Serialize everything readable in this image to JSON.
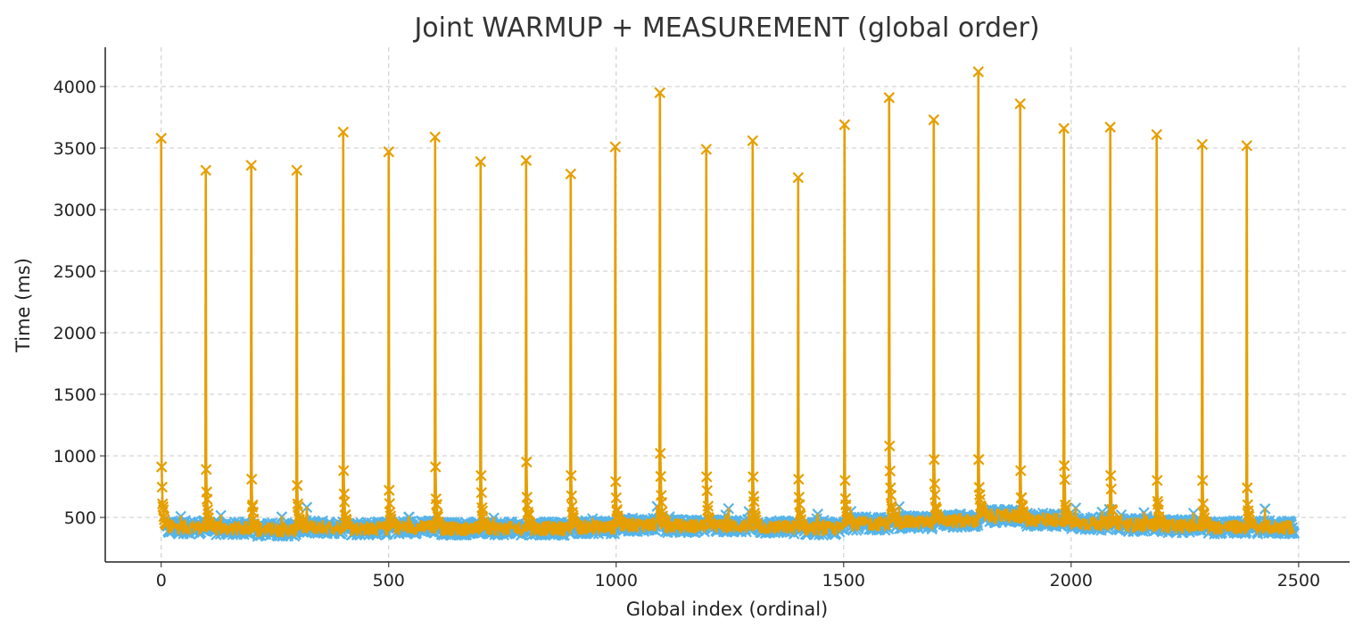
{
  "chart_data": {
    "type": "line",
    "title": "Joint WARMUP + MEASUREMENT (global order)",
    "xlabel": "Global index (ordinal)",
    "ylabel": "Time (ms)",
    "xlim": [
      -123,
      2612
    ],
    "ylim": [
      138,
      4319
    ],
    "xticks": [
      0,
      500,
      1000,
      1500,
      2000,
      2500
    ],
    "yticks": [
      500,
      1000,
      1500,
      2000,
      2500,
      3000,
      3500,
      4000
    ],
    "grid": true,
    "colors": {
      "warmup": "#E69F00",
      "measurement": "#56B4E9"
    },
    "marker": "x",
    "last_index": 2490,
    "warmup_spikes": {
      "x": [
        0,
        98,
        198,
        298,
        400,
        500,
        602,
        702,
        802,
        900,
        998,
        1096,
        1198,
        1300,
        1400,
        1502,
        1600,
        1698,
        1796,
        1888,
        1984,
        2086,
        2188,
        2288,
        2386
      ],
      "peak": [
        3580,
        3320,
        3360,
        3320,
        3630,
        3470,
        3590,
        3390,
        3400,
        3290,
        3510,
        3950,
        3490,
        3560,
        3260,
        3690,
        3910,
        3730,
        4120,
        3860,
        3660,
        3670,
        3610,
        3530,
        3520
      ],
      "second": [
        910,
        890,
        810,
        760,
        880,
        720,
        910,
        840,
        950,
        840,
        790,
        1020,
        830,
        830,
        810,
        800,
        1080,
        970,
        970,
        880,
        920,
        840,
        800,
        800,
        740
      ]
    },
    "measurement_baseline_ms": [
      420,
      410,
      400,
      420,
      410,
      420,
      410,
      410,
      410,
      420,
      440,
      430,
      430,
      420,
      410,
      450,
      460,
      470,
      510,
      480,
      450,
      440,
      430,
      420,
      420
    ]
  }
}
